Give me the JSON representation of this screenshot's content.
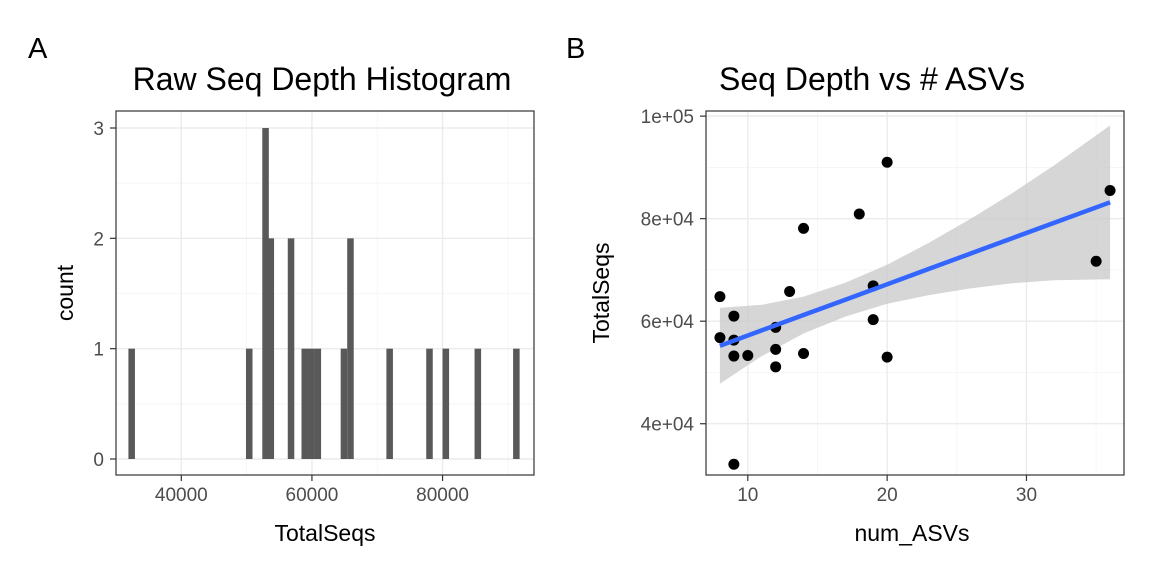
{
  "panels": {
    "a": {
      "tag": "A"
    },
    "b": {
      "tag": "B"
    }
  },
  "chart_data": [
    {
      "type": "bar",
      "subtype": "histogram",
      "title": "Raw Seq Depth Histogram",
      "xlabel": "TotalSeqs",
      "ylabel": "count",
      "xlim": [
        30000,
        94000
      ],
      "ylim": [
        0,
        3
      ],
      "xticks": [
        40000,
        60000,
        80000
      ],
      "yticks": [
        0,
        1,
        2,
        3
      ],
      "xtick_labels": [
        "40000",
        "60000",
        "80000"
      ],
      "ytick_labels": [
        "0",
        "1",
        "2",
        "3"
      ],
      "bin_width": 1000,
      "bar_color": "#595959",
      "grid": true,
      "bins": [
        {
          "start": 31900,
          "count": 1
        },
        {
          "start": 49900,
          "count": 1
        },
        {
          "start": 52400,
          "count": 3
        },
        {
          "start": 53200,
          "count": 2
        },
        {
          "start": 56300,
          "count": 2
        },
        {
          "start": 58400,
          "count": 1
        },
        {
          "start": 59400,
          "count": 1
        },
        {
          "start": 60400,
          "count": 1
        },
        {
          "start": 64400,
          "count": 1
        },
        {
          "start": 65400,
          "count": 2
        },
        {
          "start": 71400,
          "count": 1
        },
        {
          "start": 77500,
          "count": 1
        },
        {
          "start": 80000,
          "count": 1
        },
        {
          "start": 84900,
          "count": 1
        },
        {
          "start": 90800,
          "count": 1
        }
      ]
    },
    {
      "type": "scatter",
      "title": "Seq Depth vs # ASVs",
      "xlabel": "num_ASVs",
      "ylabel": "TotalSeqs",
      "xlim": [
        7,
        37
      ],
      "ylim": [
        30000,
        101000
      ],
      "xticks": [
        10,
        20,
        30
      ],
      "yticks": [
        40000,
        60000,
        80000,
        100000
      ],
      "xtick_labels": [
        "10",
        "20",
        "30"
      ],
      "ytick_labels": [
        "4e+04",
        "6e+04",
        "8e+04",
        "1e+05"
      ],
      "point_color": "#000000",
      "grid": true,
      "points": [
        {
          "x": 8,
          "y": 64800
        },
        {
          "x": 8,
          "y": 56800
        },
        {
          "x": 9,
          "y": 61000
        },
        {
          "x": 9,
          "y": 56300
        },
        {
          "x": 9,
          "y": 53200
        },
        {
          "x": 9,
          "y": 32100
        },
        {
          "x": 10,
          "y": 53300
        },
        {
          "x": 12,
          "y": 58800
        },
        {
          "x": 12,
          "y": 54500
        },
        {
          "x": 12,
          "y": 51100
        },
        {
          "x": 13,
          "y": 65800
        },
        {
          "x": 14,
          "y": 78100
        },
        {
          "x": 14,
          "y": 53700
        },
        {
          "x": 18,
          "y": 80900
        },
        {
          "x": 19,
          "y": 66900
        },
        {
          "x": 19,
          "y": 60300
        },
        {
          "x": 20,
          "y": 91000
        },
        {
          "x": 20,
          "y": 53000
        },
        {
          "x": 35,
          "y": 71700
        },
        {
          "x": 36,
          "y": 85500
        }
      ],
      "fit_line": {
        "method": "linear",
        "color": "#3366ff",
        "band_color": "#c8c8c8",
        "x": [
          8,
          11,
          14,
          17,
          20,
          23,
          26,
          29,
          32,
          36
        ],
        "y": [
          55200,
          58200,
          61200,
          64200,
          67200,
          70200,
          73200,
          76200,
          79200,
          83200
        ],
        "ci_lower": [
          47800,
          53200,
          57600,
          60900,
          63400,
          65100,
          66400,
          67400,
          68000,
          68200
        ],
        "ci_upper": [
          62600,
          63200,
          64800,
          67500,
          71000,
          75300,
          80000,
          85000,
          90400,
          98200
        ]
      }
    }
  ]
}
